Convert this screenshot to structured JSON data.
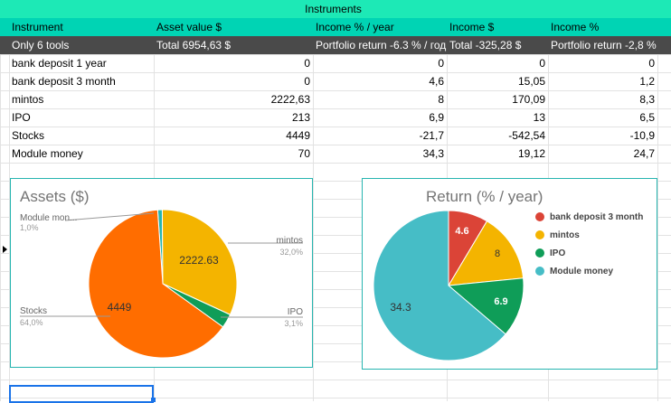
{
  "sheet": {
    "title": "Instruments",
    "headers": [
      "Instrument",
      "Asset value  $",
      "Income  % / year",
      "Income  $",
      "Income  %"
    ],
    "summary": [
      "Only 6 tools",
      "Total 6954,63 $",
      "Portfolio return -6.3 % / год",
      "Total -325,28 $",
      "Portfolio return -2,8 %"
    ],
    "rows": [
      [
        "bank deposit 1 year",
        "0",
        "0",
        "0",
        "0"
      ],
      [
        "bank deposit 3 month",
        "0",
        "4,6",
        "15,05",
        "1,2"
      ],
      [
        "mintos",
        "2222,63",
        "8",
        "170,09",
        "8,3"
      ],
      [
        "IPO",
        "213",
        "6,9",
        "13",
        "6,5"
      ],
      [
        "Stocks",
        "4449",
        "-21,7",
        "-542,54",
        "-10,9"
      ],
      [
        "Module money",
        "70",
        "34,3",
        "19,12",
        "24,7"
      ]
    ]
  },
  "assets_chart": {
    "title": "Assets ($)",
    "slices": [
      {
        "name": "Module money",
        "label": "Module mon...",
        "value": 70,
        "pct": "1,0%",
        "color": "#26b5b0"
      },
      {
        "name": "mintos",
        "label": "mintos",
        "value": 2222.63,
        "pct": "32,0%",
        "color": "#f4b400",
        "inner": "2222.63"
      },
      {
        "name": "IPO",
        "label": "IPO",
        "value": 213,
        "pct": "3,1%",
        "color": "#0f9d58"
      },
      {
        "name": "Stocks",
        "label": "Stocks",
        "value": 4449,
        "pct": "64,0%",
        "color": "#ff6d00",
        "inner": "4449"
      }
    ]
  },
  "return_chart": {
    "title": "Return (% / year)",
    "slices": [
      {
        "name": "bank deposit 3 month",
        "value": 4.6,
        "label": "4.6",
        "color": "#db4437"
      },
      {
        "name": "mintos",
        "value": 8,
        "label": "8",
        "color": "#f4b400"
      },
      {
        "name": "IPO",
        "value": 6.9,
        "label": "6.9",
        "color": "#0f9d58"
      },
      {
        "name": "Module money",
        "value": 34.3,
        "label": "34.3",
        "color": "#46bdc6"
      }
    ],
    "legend": [
      "bank deposit 3 month",
      "mintos",
      "IPO",
      "Module money"
    ]
  }
}
